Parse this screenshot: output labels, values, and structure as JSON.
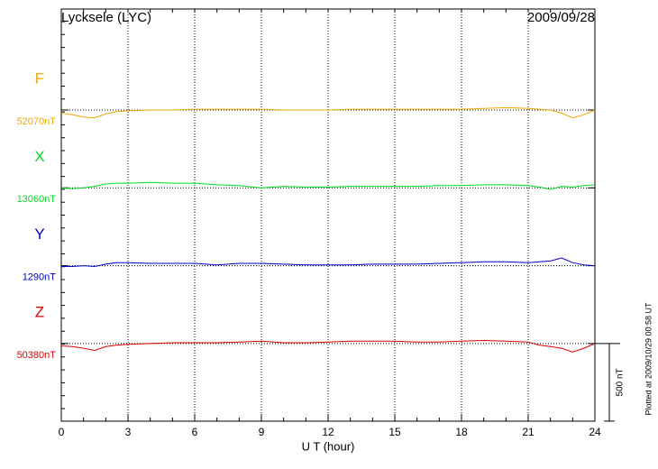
{
  "chart_data": {
    "type": "line",
    "title": "Lycksele (LYC)",
    "date": "2009/09/28",
    "x_label": "U T (hour)",
    "plotted_note": "Plotted at 2009/10/29 00:58 UT",
    "scale_bar": {
      "value": 500,
      "label": "500 nT"
    },
    "xlim": [
      0,
      24
    ],
    "xticks": [
      0,
      3,
      6,
      9,
      12,
      15,
      18,
      21,
      24
    ],
    "grid": true,
    "x": [
      0,
      0.5,
      1,
      1.5,
      2,
      2.5,
      3,
      4,
      5,
      6,
      7,
      8,
      9,
      10,
      11,
      12,
      13,
      14,
      15,
      16,
      17,
      18,
      19,
      20,
      21,
      21.5,
      22,
      22.5,
      23,
      23.5,
      24
    ],
    "series": [
      {
        "name": "F",
        "baseline_label": "52070nT",
        "color": "#f0a800",
        "values": [
          -20,
          -30,
          -45,
          -50,
          -25,
          -10,
          -5,
          0,
          0,
          5,
          5,
          5,
          5,
          0,
          0,
          0,
          5,
          5,
          5,
          5,
          5,
          5,
          10,
          15,
          10,
          5,
          0,
          -20,
          -50,
          -30,
          0
        ]
      },
      {
        "name": "X",
        "baseline_label": "13060nT",
        "color": "#00dd22",
        "values": [
          0,
          -5,
          0,
          10,
          25,
          30,
          30,
          35,
          30,
          30,
          20,
          15,
          0,
          10,
          5,
          5,
          10,
          10,
          10,
          10,
          15,
          15,
          20,
          20,
          15,
          5,
          -10,
          10,
          5,
          15,
          20
        ]
      },
      {
        "name": "Y",
        "baseline_label": "1290nT",
        "color": "#0000cc",
        "values": [
          -5,
          -5,
          0,
          -5,
          10,
          20,
          20,
          15,
          15,
          15,
          5,
          15,
          15,
          10,
          5,
          5,
          5,
          10,
          10,
          10,
          15,
          20,
          25,
          25,
          20,
          25,
          30,
          50,
          20,
          5,
          0
        ]
      },
      {
        "name": "Z",
        "baseline_label": "50380nT",
        "color": "#dd0000",
        "values": [
          -15,
          -20,
          -30,
          -45,
          -20,
          -10,
          -5,
          0,
          5,
          5,
          5,
          10,
          15,
          5,
          5,
          10,
          15,
          15,
          15,
          10,
          10,
          15,
          20,
          15,
          10,
          -10,
          -20,
          -30,
          -55,
          -30,
          0
        ]
      }
    ]
  }
}
